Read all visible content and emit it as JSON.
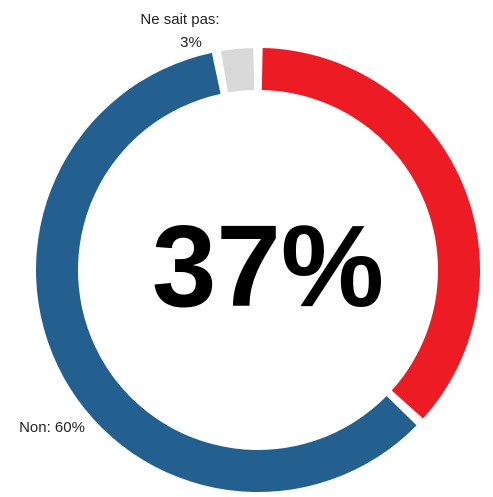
{
  "chart_data": {
    "type": "pie",
    "variant": "donut",
    "slices": [
      {
        "label": "",
        "value": 37,
        "color": "#ed1c24"
      },
      {
        "label": "Non",
        "value": 60,
        "color": "#23608f"
      },
      {
        "label": "Ne sait pas",
        "value": 3,
        "color": "#d9d9d9"
      }
    ],
    "center_text": "37%",
    "data_labels": {
      "non": "Non: 60%",
      "ne_sait_pas_line1": "Ne sait pas:",
      "ne_sait_pas_line2": "3%"
    },
    "legend": "none"
  }
}
